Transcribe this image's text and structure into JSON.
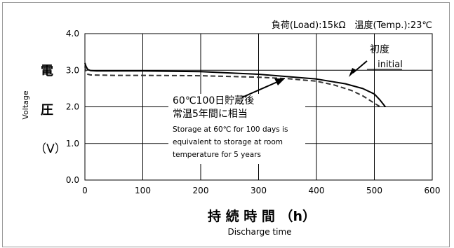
{
  "chart_data": {
    "type": "line",
    "header_text": "負荷(Load):15kΩ　温度(Temp.):23℃",
    "xlabel_jp": "持 続 時 間 （h）",
    "xlabel_en": "Discharge time",
    "ylabel_chars": [
      "電",
      "圧"
    ],
    "ylabel_unit": "（V）",
    "ylabel_en": "Voltage",
    "xlim": [
      0,
      600
    ],
    "ylim": [
      0,
      4
    ],
    "x_ticks": [
      0,
      100,
      200,
      300,
      400,
      500,
      600
    ],
    "x_tick_labels": [
      "0",
      "100",
      "200",
      "300",
      "400",
      "500",
      "600"
    ],
    "y_ticks": [
      0,
      1,
      2,
      3,
      4
    ],
    "y_tick_labels": [
      "0.0",
      "1.0",
      "2.0",
      "3.0",
      "4.0"
    ],
    "grid": true,
    "series": [
      {
        "style": "solid",
        "x": [
          0,
          2,
          5,
          10,
          20,
          50,
          100,
          200,
          300,
          400,
          450,
          480,
          500,
          510,
          519
        ],
        "y": [
          3.2,
          3.1,
          3.02,
          2.99,
          2.98,
          2.98,
          2.98,
          2.96,
          2.89,
          2.76,
          2.63,
          2.5,
          2.35,
          2.18,
          2.0
        ]
      },
      {
        "style": "dashed",
        "x": [
          0,
          2,
          5,
          10,
          50,
          100,
          200,
          300,
          350,
          400,
          430,
          460,
          480,
          500,
          510
        ],
        "y": [
          3.1,
          2.95,
          2.89,
          2.87,
          2.86,
          2.86,
          2.85,
          2.81,
          2.77,
          2.7,
          2.6,
          2.45,
          2.3,
          2.1,
          2.0
        ]
      }
    ],
    "annotations": [
      {
        "lines": [
          "初度",
          "initial"
        ]
      },
      {
        "lines": [
          "60℃100日貯蔵後",
          "常温5年間に相当",
          "Storage at 60℃ for 100 days is",
          "equivalent to storage at room",
          "temperature for 5 years"
        ]
      }
    ]
  }
}
